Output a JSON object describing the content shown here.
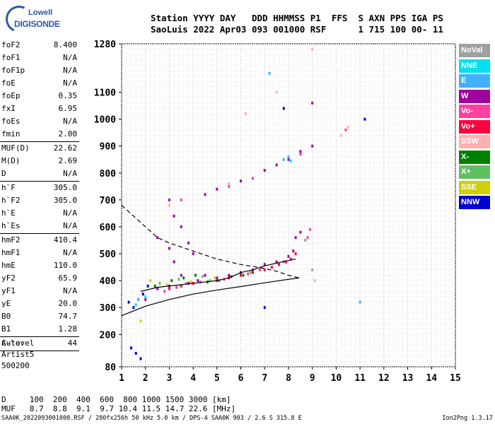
{
  "logo": {
    "line1": "Lowell",
    "line2": "DIGISONDE"
  },
  "header": {
    "line1": "Station YYYY DAY   DDD HHMMSS P1  FFS  S AXN PPS IGA PS",
    "line2": "SaoLuis 2022 Apr03 093 001000 RSF      1 715 100 00- 11"
  },
  "params": [
    {
      "name": "foF2",
      "value": "8.400"
    },
    {
      "name": "foF1",
      "value": "N/A"
    },
    {
      "name": "foF1p",
      "value": "N/A"
    },
    {
      "name": "foE",
      "value": "N/A"
    },
    {
      "name": "foEp",
      "value": "0.35"
    },
    {
      "name": "fxI",
      "value": "6.95"
    },
    {
      "name": "foEs",
      "value": "N/A"
    },
    {
      "name": "fmin",
      "value": "2.00",
      "sep": true
    },
    {
      "name": "MUF(D)",
      "value": "22.62"
    },
    {
      "name": "M(D)",
      "value": "2.69"
    },
    {
      "name": "D",
      "value": "N/A",
      "sep": true
    },
    {
      "name": "h`F",
      "value": "305.0"
    },
    {
      "name": "h`F2",
      "value": "305.0"
    },
    {
      "name": "h`E",
      "value": "N/A"
    },
    {
      "name": "h`Es",
      "value": "N/A",
      "sep": true
    },
    {
      "name": "hmF2",
      "value": "410.4"
    },
    {
      "name": "hmF1",
      "value": "N/A"
    },
    {
      "name": "hmE",
      "value": "110.0"
    },
    {
      "name": "yF2",
      "value": "65.9"
    },
    {
      "name": "yF1",
      "value": "N/A"
    },
    {
      "name": "yE",
      "value": "20.0"
    },
    {
      "name": "B0",
      "value": "74.7"
    },
    {
      "name": "B1",
      "value": "1.28",
      "sep": true
    },
    {
      "name": "C-level",
      "value": "44",
      "sep": true
    }
  ],
  "auto": {
    "line1": "Auto:",
    "line2": "Artist5",
    "line3": "500200"
  },
  "legend": [
    {
      "label": "NoVal",
      "color": "#a0a0a0"
    },
    {
      "label": "NNE",
      "color": "#00e0f0"
    },
    {
      "label": "E",
      "color": "#40b0ff"
    },
    {
      "label": "W",
      "color": "#a000a0"
    },
    {
      "label": "Vo-",
      "color": "#ff40a0"
    },
    {
      "label": "Vo+",
      "color": "#ff0040"
    },
    {
      "label": "SSW",
      "color": "#ffb0b0"
    },
    {
      "label": "X-",
      "color": "#008000"
    },
    {
      "label": "X+",
      "color": "#60c060"
    },
    {
      "label": "SSE",
      "color": "#d0d000"
    },
    {
      "label": "NNW",
      "color": "#0000d0"
    }
  ],
  "bottom": {
    "line1": "D     100  200  400  600  800 1000 1500 3000 [km]",
    "line2": "MUF   8.7  8.8  9.1  9.7 10.4 11.5 14.7 22.6 [MHz]"
  },
  "footer": {
    "left": "SAA0K_2022093001000.RSF / 280fx256h 50 kHz 5.0 km / DPS-4 SAA0K 903 / 2.6 S 315.8 E",
    "right": "Ion2Png 1.3.17"
  },
  "chart_data": {
    "type": "scatter",
    "xlim": [
      1,
      15
    ],
    "ylim": [
      80,
      1280
    ],
    "x_ticks": [
      1,
      2,
      3,
      4,
      5,
      6,
      7,
      8,
      9,
      10,
      11,
      12,
      13,
      14,
      15
    ],
    "y_ticks": [
      80,
      200,
      300,
      400,
      500,
      600,
      700,
      800,
      900,
      1000,
      1100,
      1280
    ],
    "grid": true,
    "series": [
      {
        "name": "W",
        "color": "#a000a0",
        "points": [
          [
            2.0,
            330
          ],
          [
            2.5,
            370
          ],
          [
            3.0,
            380
          ],
          [
            3.2,
            470
          ],
          [
            3.5,
            420
          ],
          [
            3.8,
            390
          ],
          [
            4.2,
            400
          ],
          [
            4.5,
            420
          ],
          [
            5.0,
            410
          ],
          [
            5.5,
            420
          ],
          [
            6.0,
            430
          ],
          [
            6.5,
            440
          ],
          [
            7.0,
            460
          ],
          [
            7.5,
            470
          ],
          [
            8.0,
            490
          ],
          [
            8.2,
            510
          ],
          [
            8.3,
            560
          ],
          [
            8.5,
            580
          ],
          [
            3.0,
            700
          ],
          [
            3.2,
            640
          ],
          [
            3.5,
            600
          ],
          [
            3.8,
            540
          ],
          [
            4.0,
            500
          ],
          [
            2.5,
            560
          ],
          [
            3.0,
            520
          ],
          [
            4.5,
            720
          ],
          [
            5.0,
            740
          ],
          [
            6.0,
            770
          ],
          [
            7.0,
            810
          ],
          [
            7.5,
            830
          ],
          [
            8.0,
            850
          ],
          [
            8.5,
            880
          ],
          [
            9.0,
            900
          ],
          [
            9.0,
            1060
          ]
        ]
      },
      {
        "name": "Vo+",
        "color": "#ff0040",
        "points": [
          [
            3.0,
            370
          ],
          [
            3.5,
            380
          ],
          [
            4.0,
            390
          ],
          [
            5.0,
            400
          ],
          [
            5.5,
            410
          ],
          [
            6.0,
            420
          ],
          [
            6.5,
            430
          ],
          [
            7.0,
            440
          ],
          [
            7.3,
            450
          ],
          [
            7.6,
            460
          ],
          [
            7.9,
            470
          ],
          [
            8.1,
            480
          ],
          [
            8.3,
            500
          ]
        ]
      },
      {
        "name": "Vo-",
        "color": "#ff40a0",
        "points": [
          [
            2.8,
            360
          ],
          [
            3.3,
            375
          ],
          [
            4.3,
            395
          ],
          [
            5.3,
            405
          ],
          [
            6.3,
            425
          ],
          [
            6.8,
            440
          ],
          [
            7.8,
            470
          ],
          [
            8.8,
            560
          ],
          [
            8.9,
            590
          ],
          [
            3.5,
            700
          ],
          [
            5.5,
            750
          ],
          [
            6.5,
            780
          ],
          [
            8.5,
            870
          ],
          [
            10.4,
            960
          ]
        ]
      },
      {
        "name": "NNW",
        "color": "#0000d0",
        "points": [
          [
            1.3,
            320
          ],
          [
            1.5,
            300
          ],
          [
            1.7,
            330
          ],
          [
            1.9,
            350
          ],
          [
            2.1,
            380
          ],
          [
            1.4,
            150
          ],
          [
            1.6,
            130
          ],
          [
            1.8,
            110
          ],
          [
            7.0,
            300
          ],
          [
            7.8,
            1040
          ],
          [
            11.2,
            1000
          ]
        ]
      },
      {
        "name": "X-",
        "color": "#008000",
        "points": [
          [
            2.4,
            380
          ],
          [
            3.1,
            400
          ],
          [
            3.6,
            410
          ],
          [
            4.1,
            420
          ],
          [
            4.6,
            395
          ],
          [
            5.6,
            415
          ],
          [
            6.1,
            420
          ]
        ]
      },
      {
        "name": "X+",
        "color": "#60c060",
        "points": [
          [
            2.6,
            390
          ],
          [
            3.4,
            405
          ],
          [
            4.4,
            415
          ],
          [
            5.1,
            400
          ],
          [
            6.4,
            430
          ]
        ]
      },
      {
        "name": "SSE",
        "color": "#d0d000",
        "points": [
          [
            2.2,
            400
          ],
          [
            2.9,
            385
          ],
          [
            3.9,
            395
          ],
          [
            4.9,
            410
          ],
          [
            1.8,
            250
          ]
        ]
      },
      {
        "name": "E",
        "color": "#40b0ff",
        "points": [
          [
            1.7,
            330
          ],
          [
            7.8,
            850
          ],
          [
            8.0,
            860
          ],
          [
            11.0,
            320
          ],
          [
            7.2,
            1170
          ]
        ]
      },
      {
        "name": "NNE",
        "color": "#00e0f0",
        "points": [
          [
            1.6,
            310
          ],
          [
            2.0,
            340
          ],
          [
            8.1,
            845
          ]
        ]
      },
      {
        "name": "SSW",
        "color": "#ffb0b0",
        "points": [
          [
            3.0,
            680
          ],
          [
            5.5,
            760
          ],
          [
            9.0,
            1260
          ],
          [
            9.1,
            400
          ],
          [
            10.2,
            940
          ],
          [
            10.5,
            970
          ],
          [
            6.2,
            1020
          ],
          [
            7.5,
            1100
          ]
        ]
      },
      {
        "name": "NoVal",
        "color": "#a0a0a0",
        "points": [
          [
            3.7,
            390
          ],
          [
            4.7,
            400
          ],
          [
            8.7,
            550
          ],
          [
            9.0,
            440
          ]
        ]
      }
    ],
    "curves": {
      "solid": [
        [
          1,
          270
        ],
        [
          2,
          305
        ],
        [
          3,
          330
        ],
        [
          4,
          350
        ],
        [
          5,
          365
        ],
        [
          6,
          378
        ],
        [
          7,
          392
        ],
        [
          8,
          405
        ],
        [
          8.45,
          410
        ]
      ],
      "dashed": [
        [
          1,
          680
        ],
        [
          1.5,
          640
        ],
        [
          2,
          600
        ],
        [
          2.5,
          560
        ],
        [
          3,
          540
        ],
        [
          4,
          510
        ],
        [
          5,
          480
        ],
        [
          6,
          460
        ],
        [
          7,
          445
        ],
        [
          7.5,
          435
        ],
        [
          8,
          420
        ],
        [
          8.45,
          410
        ]
      ],
      "trace": [
        [
          1.8,
          360
        ],
        [
          2.5,
          375
        ],
        [
          3,
          380
        ],
        [
          3.5,
          385
        ],
        [
          4,
          390
        ],
        [
          4.5,
          395
        ],
        [
          5,
          400
        ],
        [
          5.5,
          410
        ],
        [
          6,
          430
        ],
        [
          6.5,
          440
        ],
        [
          7,
          455
        ],
        [
          7.5,
          465
        ],
        [
          8,
          475
        ],
        [
          8.3,
          480
        ]
      ]
    }
  }
}
